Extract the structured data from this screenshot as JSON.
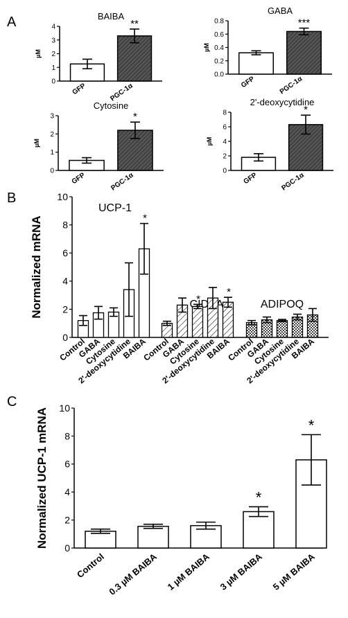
{
  "panel_labels": {
    "a": "A",
    "b": "B",
    "c": "C"
  },
  "colors": {
    "white_bar": "#ffffff",
    "dark_bar": "#555555",
    "axis": "#000000"
  },
  "chart_data": [
    {
      "type": "bar",
      "title": "BAIBA",
      "ylabel": "µM",
      "categories": [
        "GFP",
        "PGC-1α"
      ],
      "values": [
        1.25,
        3.3
      ],
      "errors": [
        0.35,
        0.5
      ],
      "fill": [
        "white",
        "dark-hatched"
      ],
      "ylim": [
        0,
        4
      ],
      "yticks": [
        "0",
        "1",
        "2",
        "3",
        "4"
      ],
      "annotations": [
        "",
        "**"
      ]
    },
    {
      "type": "bar",
      "title": "GABA",
      "ylabel": "µM",
      "categories": [
        "GFP",
        "PGC-1α"
      ],
      "values": [
        0.32,
        0.64
      ],
      "errors": [
        0.03,
        0.05
      ],
      "fill": [
        "white",
        "dark-hatched"
      ],
      "ylim": [
        0,
        0.8
      ],
      "yticks": [
        "0.0",
        "0.2",
        "0.4",
        "0.6",
        "0.8"
      ],
      "annotations": [
        "",
        "***"
      ]
    },
    {
      "type": "bar",
      "title": "Cytosine",
      "ylabel": "µM",
      "categories": [
        "GFP",
        "PGC-1α"
      ],
      "values": [
        0.55,
        2.2
      ],
      "errors": [
        0.15,
        0.45
      ],
      "fill": [
        "white",
        "dark-hatched"
      ],
      "ylim": [
        0,
        3
      ],
      "yticks": [
        "0",
        "1",
        "2",
        "3"
      ],
      "annotations": [
        "",
        "*"
      ]
    },
    {
      "type": "bar",
      "title": "2'-deoxycytidine",
      "ylabel": "µM",
      "categories": [
        "GFP",
        "PGC-1α"
      ],
      "values": [
        1.8,
        6.3
      ],
      "errors": [
        0.5,
        1.3
      ],
      "fill": [
        "white",
        "dark-hatched"
      ],
      "ylim": [
        0,
        8
      ],
      "yticks": [
        "0",
        "2",
        "4",
        "6",
        "8"
      ],
      "annotations": [
        "",
        "*"
      ]
    },
    {
      "type": "bar",
      "ylabel": "Normalized mRNA",
      "ylim": [
        0,
        10
      ],
      "yticks": [
        "0",
        "2",
        "4",
        "6",
        "8",
        "10"
      ],
      "groups": [
        {
          "name": "UCP-1",
          "fill": "white",
          "categories": [
            "Control",
            "GABA",
            "Cytosine",
            "2'-deoxycytidine",
            "BAIBA"
          ],
          "values": [
            1.2,
            1.75,
            1.8,
            3.4,
            6.3
          ],
          "errors": [
            0.35,
            0.45,
            0.3,
            1.9,
            1.8
          ],
          "annotations": [
            "",
            "",
            "",
            "",
            "*"
          ]
        },
        {
          "name": "CIDEA",
          "fill": "hatched",
          "categories": [
            "Control",
            "GABA",
            "Cytosine",
            "2'-deoxycytidine",
            "BAIBA"
          ],
          "values": [
            1.0,
            2.3,
            2.2,
            2.8,
            2.5
          ],
          "errors": [
            0.15,
            0.5,
            0.15,
            0.75,
            0.35
          ],
          "annotations": [
            "",
            "",
            "*",
            "",
            "*"
          ]
        },
        {
          "name": "ADIPOQ",
          "fill": "checkered",
          "categories": [
            "Control",
            "GABA",
            "Cytosine",
            "2'-deoxycytidine",
            "BAIBA"
          ],
          "values": [
            1.05,
            1.25,
            1.2,
            1.45,
            1.6
          ],
          "errors": [
            0.15,
            0.2,
            0.08,
            0.2,
            0.45
          ],
          "annotations": [
            "",
            "",
            "",
            "",
            ""
          ]
        }
      ]
    },
    {
      "type": "bar",
      "ylabel": "Normalized UCP-1 mRNA",
      "categories": [
        "Control",
        "0.3 µM BAIBA",
        "1 µM BAIBA",
        "3 µM BAIBA",
        "5 µM BAIBA"
      ],
      "values": [
        1.2,
        1.55,
        1.6,
        2.6,
        6.3
      ],
      "errors": [
        0.15,
        0.15,
        0.25,
        0.35,
        1.8
      ],
      "annotations": [
        "",
        "",
        "",
        "*",
        "*"
      ],
      "ylim": [
        0,
        10
      ],
      "yticks": [
        "0",
        "2",
        "4",
        "6",
        "8",
        "10"
      ]
    }
  ]
}
